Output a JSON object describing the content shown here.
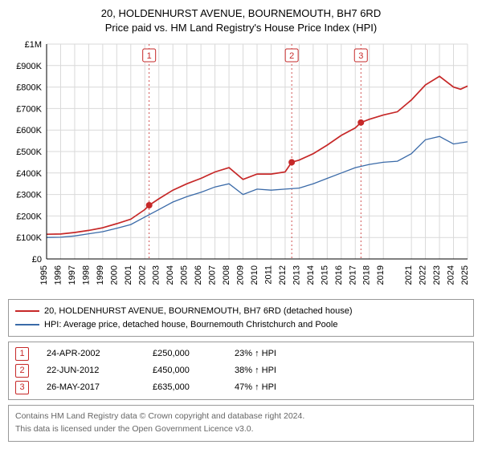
{
  "title_line1": "20, HOLDENHURST AVENUE, BOURNEMOUTH, BH7 6RD",
  "title_line2": "Price paid vs. HM Land Registry's House Price Index (HPI)",
  "chart": {
    "type": "line",
    "background_color": "#ffffff",
    "grid_color": "#d9d9d9",
    "axis_color": "#000000",
    "marker_line_color": "#c62828",
    "ylim": [
      0,
      1000000
    ],
    "ytick_step": 100000,
    "yticks": [
      "£0",
      "£100K",
      "£200K",
      "£300K",
      "£400K",
      "£500K",
      "£600K",
      "£700K",
      "£800K",
      "£900K",
      "£1M"
    ],
    "xlim": [
      1995,
      2025
    ],
    "xticks": [
      1995,
      1996,
      1997,
      1998,
      1999,
      2000,
      2001,
      2002,
      2003,
      2004,
      2005,
      2006,
      2007,
      2008,
      2009,
      2010,
      2011,
      2012,
      2013,
      2014,
      2015,
      2016,
      2017,
      2018,
      2019,
      2021,
      2022,
      2023,
      2024,
      2025
    ],
    "label_fontsize": 11,
    "series_a_color": "#c62828",
    "series_b_color": "#3a6aa8",
    "series_a": [
      [
        1995,
        115000
      ],
      [
        1996,
        116000
      ],
      [
        1997,
        123000
      ],
      [
        1998,
        133000
      ],
      [
        1999,
        145000
      ],
      [
        2000,
        164000
      ],
      [
        2001,
        185000
      ],
      [
        2002,
        230000
      ],
      [
        2002.31,
        250000
      ],
      [
        2003,
        280000
      ],
      [
        2004,
        320000
      ],
      [
        2005,
        350000
      ],
      [
        2006,
        375000
      ],
      [
        2007,
        405000
      ],
      [
        2008,
        425000
      ],
      [
        2009,
        370000
      ],
      [
        2010,
        395000
      ],
      [
        2011,
        395000
      ],
      [
        2012,
        405000
      ],
      [
        2012.47,
        450000
      ],
      [
        2013,
        460000
      ],
      [
        2014,
        490000
      ],
      [
        2015,
        530000
      ],
      [
        2016,
        575000
      ],
      [
        2017,
        610000
      ],
      [
        2017.4,
        635000
      ],
      [
        2018,
        650000
      ],
      [
        2019,
        670000
      ],
      [
        2020,
        685000
      ],
      [
        2021,
        740000
      ],
      [
        2022,
        810000
      ],
      [
        2023,
        850000
      ],
      [
        2024,
        800000
      ],
      [
        2024.5,
        790000
      ],
      [
        2025,
        805000
      ]
    ],
    "series_b": [
      [
        1995,
        100000
      ],
      [
        1996,
        101000
      ],
      [
        1997,
        107000
      ],
      [
        1998,
        117000
      ],
      [
        1999,
        127000
      ],
      [
        2000,
        143000
      ],
      [
        2001,
        160000
      ],
      [
        2002,
        195000
      ],
      [
        2003,
        230000
      ],
      [
        2004,
        265000
      ],
      [
        2005,
        290000
      ],
      [
        2006,
        310000
      ],
      [
        2007,
        335000
      ],
      [
        2008,
        350000
      ],
      [
        2009,
        300000
      ],
      [
        2010,
        325000
      ],
      [
        2011,
        320000
      ],
      [
        2012,
        325000
      ],
      [
        2013,
        330000
      ],
      [
        2014,
        350000
      ],
      [
        2015,
        375000
      ],
      [
        2016,
        400000
      ],
      [
        2017,
        425000
      ],
      [
        2018,
        440000
      ],
      [
        2019,
        450000
      ],
      [
        2020,
        455000
      ],
      [
        2021,
        490000
      ],
      [
        2022,
        555000
      ],
      [
        2023,
        570000
      ],
      [
        2024,
        535000
      ],
      [
        2025,
        545000
      ]
    ],
    "markers": [
      {
        "n": "1",
        "year": 2002.31,
        "value": 250000
      },
      {
        "n": "2",
        "year": 2012.47,
        "value": 450000
      },
      {
        "n": "3",
        "year": 2017.4,
        "value": 635000
      }
    ]
  },
  "legend": {
    "a": "20, HOLDENHURST AVENUE, BOURNEMOUTH, BH7 6RD (detached house)",
    "b": "HPI: Average price, detached house, Bournemouth Christchurch and Poole"
  },
  "marker_rows": [
    {
      "n": "1",
      "date": "24-APR-2002",
      "price": "£250,000",
      "pct": "23% ↑ HPI"
    },
    {
      "n": "2",
      "date": "22-JUN-2012",
      "price": "£450,000",
      "pct": "38% ↑ HPI"
    },
    {
      "n": "3",
      "date": "26-MAY-2017",
      "price": "£635,000",
      "pct": "47% ↑ HPI"
    }
  ],
  "footer_line1": "Contains HM Land Registry data © Crown copyright and database right 2024.",
  "footer_line2": "This data is licensed under the Open Government Licence v3.0."
}
